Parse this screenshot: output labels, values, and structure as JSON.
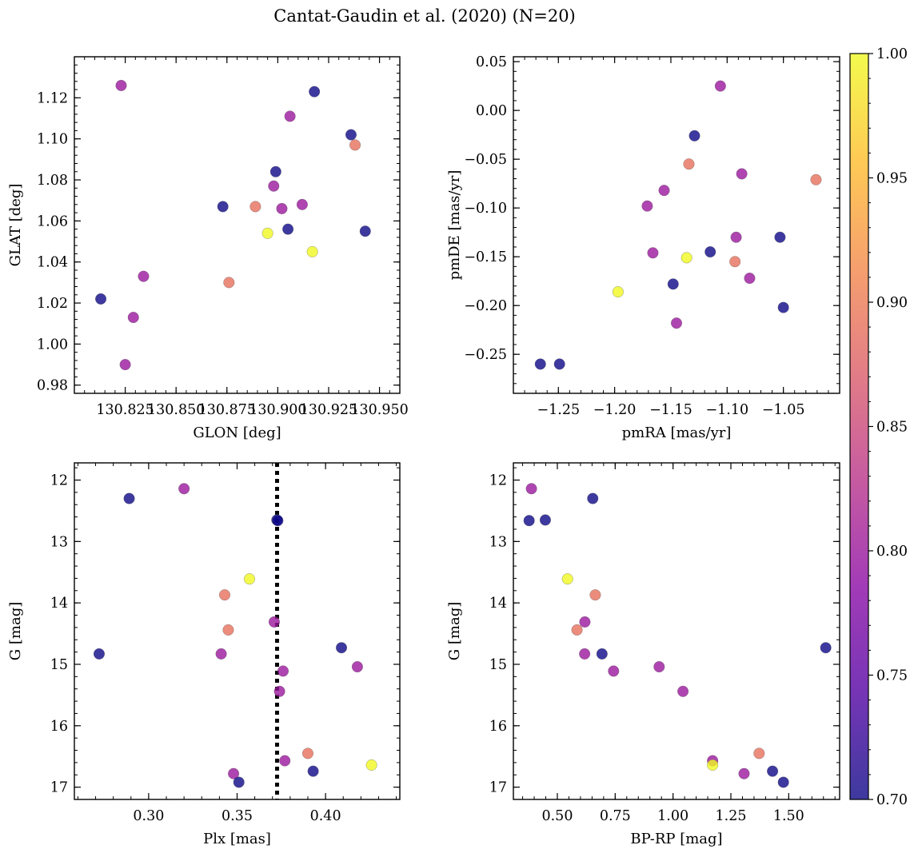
{
  "figure": {
    "title": "Cantat-Gaudin et al. (2020) (N=20)"
  },
  "colormap": {
    "name": "plasma",
    "range": [
      0.7,
      1.0
    ],
    "ticks": [
      "0.70",
      "0.75",
      "0.80",
      "0.85",
      "0.90",
      "0.95",
      "1.00"
    ],
    "colors": [
      "#0d0887",
      "#5302a3",
      "#8b0aa5",
      "#b83289",
      "#db5c68",
      "#f48849",
      "#febd2a",
      "#f0f921"
    ]
  },
  "chart_data": [
    {
      "type": "scatter",
      "xlabel": "GLON [deg]",
      "ylabel": "GLAT [deg]",
      "xlim": [
        130.8,
        130.96
      ],
      "ylim": [
        0.976,
        1.14
      ],
      "xticks": [
        130.825,
        130.85,
        130.875,
        130.9,
        130.925,
        130.95
      ],
      "xtick_labels": [
        "130.825",
        "130.850",
        "130.875",
        "130.900",
        "130.925",
        "130.950"
      ],
      "yticks": [
        0.98,
        1.0,
        1.02,
        1.04,
        1.06,
        1.08,
        1.1,
        1.12
      ],
      "ytick_labels": [
        "0.98",
        "1.00",
        "1.02",
        "1.04",
        "1.06",
        "1.08",
        "1.10",
        "1.12"
      ],
      "points": [
        {
          "x": 130.823,
          "y": 1.126,
          "c": 0.8
        },
        {
          "x": 130.906,
          "y": 1.111,
          "c": 0.8
        },
        {
          "x": 130.918,
          "y": 1.123,
          "c": 0.7
        },
        {
          "x": 130.936,
          "y": 1.102,
          "c": 0.7
        },
        {
          "x": 130.938,
          "y": 1.097,
          "c": 0.89
        },
        {
          "x": 130.899,
          "y": 1.084,
          "c": 0.7
        },
        {
          "x": 130.898,
          "y": 1.077,
          "c": 0.8
        },
        {
          "x": 130.873,
          "y": 1.067,
          "c": 0.7
        },
        {
          "x": 130.889,
          "y": 1.067,
          "c": 0.89
        },
        {
          "x": 130.902,
          "y": 1.066,
          "c": 0.8
        },
        {
          "x": 130.912,
          "y": 1.068,
          "c": 0.8
        },
        {
          "x": 130.895,
          "y": 1.054,
          "c": 1.0
        },
        {
          "x": 130.905,
          "y": 1.056,
          "c": 0.7
        },
        {
          "x": 130.943,
          "y": 1.055,
          "c": 0.7
        },
        {
          "x": 130.917,
          "y": 1.045,
          "c": 1.0
        },
        {
          "x": 130.834,
          "y": 1.033,
          "c": 0.8
        },
        {
          "x": 130.876,
          "y": 1.03,
          "c": 0.89
        },
        {
          "x": 130.813,
          "y": 1.022,
          "c": 0.7
        },
        {
          "x": 130.829,
          "y": 1.013,
          "c": 0.8
        },
        {
          "x": 130.825,
          "y": 0.99,
          "c": 0.8
        }
      ]
    },
    {
      "type": "scatter",
      "xlabel": "pmRA [mas/yr]",
      "ylabel": "pmDE [mas/yr]",
      "xlim": [
        -1.29,
        -1.0
      ],
      "ylim": [
        -0.29,
        0.055
      ],
      "xticks": [
        -1.25,
        -1.2,
        -1.15,
        -1.1,
        -1.05
      ],
      "xtick_labels": [
        "−1.25",
        "−1.20",
        "−1.15",
        "−1.10",
        "−1.05"
      ],
      "yticks": [
        -0.25,
        -0.2,
        -0.15,
        -0.1,
        -0.05,
        0.0,
        0.05
      ],
      "ytick_labels": [
        "−0.25",
        "−0.20",
        "−0.15",
        "−0.10",
        "−0.05",
        "0.00",
        "0.05"
      ],
      "points": [
        {
          "x": -1.106,
          "y": 0.025,
          "c": 0.8
        },
        {
          "x": -1.129,
          "y": -0.026,
          "c": 0.7
        },
        {
          "x": -1.134,
          "y": -0.055,
          "c": 0.89
        },
        {
          "x": -1.087,
          "y": -0.065,
          "c": 0.8
        },
        {
          "x": -1.021,
          "y": -0.071,
          "c": 0.89
        },
        {
          "x": -1.156,
          "y": -0.082,
          "c": 0.8
        },
        {
          "x": -1.171,
          "y": -0.098,
          "c": 0.8
        },
        {
          "x": -1.053,
          "y": -0.13,
          "c": 0.7
        },
        {
          "x": -1.092,
          "y": -0.13,
          "c": 0.8
        },
        {
          "x": -1.166,
          "y": -0.146,
          "c": 0.8
        },
        {
          "x": -1.115,
          "y": -0.145,
          "c": 0.7
        },
        {
          "x": -1.136,
          "y": -0.151,
          "c": 1.0
        },
        {
          "x": -1.093,
          "y": -0.155,
          "c": 0.89
        },
        {
          "x": -1.08,
          "y": -0.172,
          "c": 0.8
        },
        {
          "x": -1.148,
          "y": -0.178,
          "c": 0.7
        },
        {
          "x": -1.197,
          "y": -0.186,
          "c": 1.0
        },
        {
          "x": -1.05,
          "y": -0.202,
          "c": 0.7
        },
        {
          "x": -1.145,
          "y": -0.218,
          "c": 0.8
        },
        {
          "x": -1.266,
          "y": -0.26,
          "c": 0.7
        },
        {
          "x": -1.249,
          "y": -0.26,
          "c": 0.7
        }
      ]
    },
    {
      "type": "scatter",
      "xlabel": "Plx [mas]",
      "ylabel": "G [mag]",
      "xlim": [
        0.258,
        0.442
      ],
      "ylim": [
        17.2,
        11.72
      ],
      "xticks": [
        0.3,
        0.35,
        0.4
      ],
      "xtick_labels": [
        "0.30",
        "0.35",
        "0.40"
      ],
      "yticks": [
        12,
        13,
        14,
        15,
        16,
        17
      ],
      "ytick_labels": [
        "12",
        "13",
        "14",
        "15",
        "16",
        "17"
      ],
      "vline": 0.3726,
      "points": [
        {
          "x": 0.32,
          "y": 12.14,
          "c": 0.8
        },
        {
          "x": 0.289,
          "y": 12.3,
          "c": 0.7
        },
        {
          "x": 0.3725,
          "y": 12.65,
          "c": 0.7
        },
        {
          "x": 0.373,
          "y": 12.66,
          "c": 0.7
        },
        {
          "x": 0.357,
          "y": 13.61,
          "c": 1.0
        },
        {
          "x": 0.343,
          "y": 13.87,
          "c": 0.89
        },
        {
          "x": 0.371,
          "y": 14.31,
          "c": 0.8
        },
        {
          "x": 0.345,
          "y": 14.44,
          "c": 0.89
        },
        {
          "x": 0.272,
          "y": 14.83,
          "c": 0.7
        },
        {
          "x": 0.341,
          "y": 14.83,
          "c": 0.8
        },
        {
          "x": 0.409,
          "y": 14.73,
          "c": 0.7
        },
        {
          "x": 0.418,
          "y": 15.04,
          "c": 0.8
        },
        {
          "x": 0.376,
          "y": 15.11,
          "c": 0.8
        },
        {
          "x": 0.374,
          "y": 15.44,
          "c": 0.8
        },
        {
          "x": 0.39,
          "y": 16.45,
          "c": 0.89
        },
        {
          "x": 0.377,
          "y": 16.57,
          "c": 0.8
        },
        {
          "x": 0.426,
          "y": 16.64,
          "c": 1.0
        },
        {
          "x": 0.393,
          "y": 16.74,
          "c": 0.7
        },
        {
          "x": 0.348,
          "y": 16.78,
          "c": 0.8
        },
        {
          "x": 0.351,
          "y": 16.92,
          "c": 0.7
        }
      ]
    },
    {
      "type": "scatter",
      "xlabel": "BP-RP [mag]",
      "ylabel": "G [mag]",
      "xlim": [
        0.31,
        1.72
      ],
      "ylim": [
        17.2,
        11.72
      ],
      "xticks": [
        0.5,
        0.75,
        1.0,
        1.25,
        1.5
      ],
      "xtick_labels": [
        "0.50",
        "0.75",
        "1.00",
        "1.25",
        "1.50"
      ],
      "yticks": [
        12,
        13,
        14,
        15,
        16,
        17
      ],
      "ytick_labels": [
        "12",
        "13",
        "14",
        "15",
        "16",
        "17"
      ],
      "points": [
        {
          "x": 0.388,
          "y": 12.14,
          "c": 0.8
        },
        {
          "x": 0.653,
          "y": 12.3,
          "c": 0.7
        },
        {
          "x": 0.378,
          "y": 12.66,
          "c": 0.7
        },
        {
          "x": 0.448,
          "y": 12.65,
          "c": 0.7
        },
        {
          "x": 0.544,
          "y": 13.61,
          "c": 1.0
        },
        {
          "x": 0.664,
          "y": 13.87,
          "c": 0.89
        },
        {
          "x": 0.619,
          "y": 14.31,
          "c": 0.8
        },
        {
          "x": 0.585,
          "y": 14.44,
          "c": 0.89
        },
        {
          "x": 0.618,
          "y": 14.83,
          "c": 0.8
        },
        {
          "x": 0.693,
          "y": 14.83,
          "c": 0.7
        },
        {
          "x": 0.743,
          "y": 15.11,
          "c": 0.8
        },
        {
          "x": 0.94,
          "y": 15.04,
          "c": 0.8
        },
        {
          "x": 1.043,
          "y": 15.44,
          "c": 0.8
        },
        {
          "x": 1.66,
          "y": 14.73,
          "c": 0.7
        },
        {
          "x": 1.372,
          "y": 16.45,
          "c": 0.89
        },
        {
          "x": 1.171,
          "y": 16.57,
          "c": 0.8
        },
        {
          "x": 1.171,
          "y": 16.64,
          "c": 1.0
        },
        {
          "x": 1.43,
          "y": 16.74,
          "c": 0.7
        },
        {
          "x": 1.307,
          "y": 16.78,
          "c": 0.8
        },
        {
          "x": 1.477,
          "y": 16.92,
          "c": 0.7
        }
      ]
    }
  ]
}
